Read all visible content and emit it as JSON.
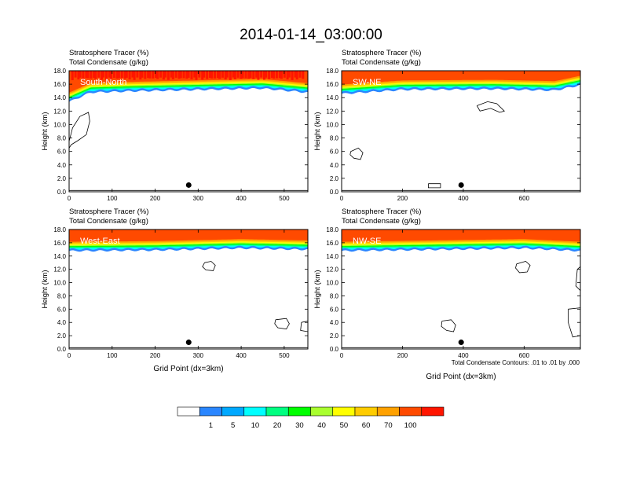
{
  "title": "2014-01-14_03:00:00",
  "note": "Total Condensate Contours: .01 to .01 by .000",
  "colors": {
    "red": "#ff1500",
    "orange_red": "#ff4a00",
    "orange": "#ffa100",
    "gold": "#ffcc00",
    "yellow": "#ffff00",
    "yellow_green": "#a9ff2e",
    "green": "#00ff00",
    "spring_green": "#00ff80",
    "cyan": "#00ffff",
    "sky_blue": "#00a8ff",
    "blue": "#2a86ff",
    "white": "#ffffff"
  },
  "chart_data": [
    {
      "type": "heatmap",
      "label": "South-North",
      "title_line1": "Stratosphere Tracer   (%)",
      "title_line2": "Total Condensate   (g/kg)",
      "ylabel": "Height (km)",
      "xlabel": "",
      "xlim": [
        0,
        555
      ],
      "ylim": [
        0,
        18
      ],
      "xticks": [
        "0",
        "100",
        "200",
        "300",
        "400",
        "500"
      ],
      "xtick_values": [
        0,
        100,
        200,
        300,
        400,
        500
      ],
      "yticks": [
        "0.0",
        "2.0",
        "4.0",
        "6.0",
        "8.0",
        "10.0",
        "12.0",
        "14.0",
        "16.0",
        "18.0"
      ],
      "marker": {
        "x": 278,
        "y": 1.0
      },
      "tracer_base_km": [
        [
          0,
          13.8
        ],
        [
          50,
          15.2
        ],
        [
          150,
          15.4
        ],
        [
          300,
          15.6
        ],
        [
          450,
          15.8
        ],
        [
          555,
          15.2
        ]
      ],
      "contours": [
        {
          "x": [
            0,
            8,
            25,
            45,
            48,
            40,
            20,
            5,
            0
          ],
          "y": [
            7.5,
            9.5,
            11.2,
            11.8,
            10.5,
            8.5,
            7.6,
            7.0,
            6.5
          ]
        }
      ]
    },
    {
      "type": "heatmap",
      "label": "SW-NE",
      "title_line1": "Stratosphere Tracer   (%)",
      "title_line2": "Total Condensate   (g/kg)",
      "ylabel": "Height (km)",
      "xlabel": "",
      "xlim": [
        0,
        785
      ],
      "ylim": [
        0,
        18
      ],
      "xticks": [
        "0",
        "200",
        "400",
        "600"
      ],
      "xtick_values": [
        0,
        200,
        400,
        600
      ],
      "yticks": [
        "0.0",
        "2.0",
        "4.0",
        "6.0",
        "8.0",
        "10.0",
        "12.0",
        "14.0",
        "16.0",
        "18.0"
      ],
      "marker": {
        "x": 393,
        "y": 1.0
      },
      "tracer_base_km": [
        [
          0,
          15.0
        ],
        [
          200,
          15.6
        ],
        [
          500,
          15.7
        ],
        [
          700,
          15.5
        ],
        [
          785,
          16.3
        ]
      ],
      "contours": [
        {
          "x": [
            445,
            480,
            510,
            535,
            520,
            490,
            455,
            445
          ],
          "y": [
            12.8,
            13.4,
            13.1,
            12.0,
            11.8,
            12.4,
            12.0,
            12.8
          ]
        },
        {
          "x": [
            30,
            55,
            70,
            62,
            40,
            28,
            30
          ],
          "y": [
            6.0,
            6.5,
            5.8,
            4.8,
            5.0,
            5.5,
            6.0
          ]
        },
        {
          "x": [
            285,
            325,
            325,
            285,
            285
          ],
          "y": [
            1.2,
            1.2,
            0.6,
            0.6,
            1.2
          ]
        }
      ]
    },
    {
      "type": "heatmap",
      "label": "West-East",
      "title_line1": "Stratosphere Tracer   (%)",
      "title_line2": "Total Condensate   (g/kg)",
      "ylabel": "Height (km)",
      "xlabel": "Grid Point (dx=3km)",
      "xlim": [
        0,
        555
      ],
      "ylim": [
        0,
        18
      ],
      "xticks": [
        "0",
        "100",
        "200",
        "300",
        "400",
        "500"
      ],
      "xtick_values": [
        0,
        100,
        200,
        300,
        400,
        500
      ],
      "yticks": [
        "0.0",
        "2.0",
        "4.0",
        "6.0",
        "8.0",
        "10.0",
        "12.0",
        "14.0",
        "16.0",
        "18.0"
      ],
      "marker": {
        "x": 278,
        "y": 1.0
      },
      "tracer_base_km": [
        [
          0,
          15.2
        ],
        [
          200,
          15.3
        ],
        [
          400,
          15.6
        ],
        [
          555,
          15.4
        ]
      ],
      "contours": [
        {
          "x": [
            315,
            330,
            340,
            335,
            318,
            310,
            315
          ],
          "y": [
            13.0,
            13.2,
            12.6,
            11.8,
            11.9,
            12.4,
            13.0
          ]
        },
        {
          "x": [
            480,
            505,
            512,
            505,
            485,
            478,
            480
          ],
          "y": [
            4.4,
            4.6,
            3.8,
            3.0,
            3.2,
            3.8,
            4.4
          ]
        },
        {
          "x": [
            540,
            555,
            555,
            538,
            540
          ],
          "y": [
            4.0,
            4.2,
            2.6,
            2.8,
            4.0
          ]
        }
      ]
    },
    {
      "type": "heatmap",
      "label": "NW-SE",
      "title_line1": "Stratosphere Tracer   (%)",
      "title_line2": "Total Condensate   (g/kg)",
      "ylabel": "Height (km)",
      "xlabel": "Grid Point (dx=3km)",
      "xlim": [
        0,
        785
      ],
      "ylim": [
        0,
        18
      ],
      "xticks": [
        "0",
        "200",
        "400",
        "600"
      ],
      "xtick_values": [
        0,
        200,
        400,
        600
      ],
      "yticks": [
        "0.0",
        "2.0",
        "4.0",
        "6.0",
        "8.0",
        "10.0",
        "12.0",
        "14.0",
        "16.0",
        "18.0"
      ],
      "marker": {
        "x": 393,
        "y": 1.0
      },
      "tracer_base_km": [
        [
          0,
          15.2
        ],
        [
          300,
          15.4
        ],
        [
          600,
          15.6
        ],
        [
          785,
          15.2
        ]
      ],
      "contours": [
        {
          "x": [
            575,
            605,
            620,
            610,
            585,
            572,
            575
          ],
          "y": [
            12.8,
            13.2,
            12.6,
            11.6,
            11.5,
            12.2,
            12.8
          ]
        },
        {
          "x": [
            330,
            360,
            375,
            368,
            345,
            328,
            330
          ],
          "y": [
            4.2,
            4.4,
            3.6,
            2.6,
            2.8,
            3.4,
            4.2
          ]
        },
        {
          "x": [
            775,
            785,
            785,
            770,
            775
          ],
          "y": [
            12.0,
            12.4,
            8.8,
            9.5,
            12.0
          ]
        },
        {
          "x": [
            745,
            785,
            785,
            760,
            745,
            745
          ],
          "y": [
            6.0,
            6.2,
            2.0,
            1.8,
            4.0,
            6.0
          ]
        }
      ]
    }
  ],
  "colorbar": {
    "labels": [
      "1",
      "5",
      "10",
      "20",
      "30",
      "40",
      "50",
      "60",
      "70",
      "100"
    ],
    "colors": [
      "#ffffff",
      "#2a86ff",
      "#00a8ff",
      "#00ffff",
      "#00ff80",
      "#00ff00",
      "#a9ff2e",
      "#ffff00",
      "#ffcc00",
      "#ffa100",
      "#ff4a00",
      "#ff1500"
    ]
  }
}
